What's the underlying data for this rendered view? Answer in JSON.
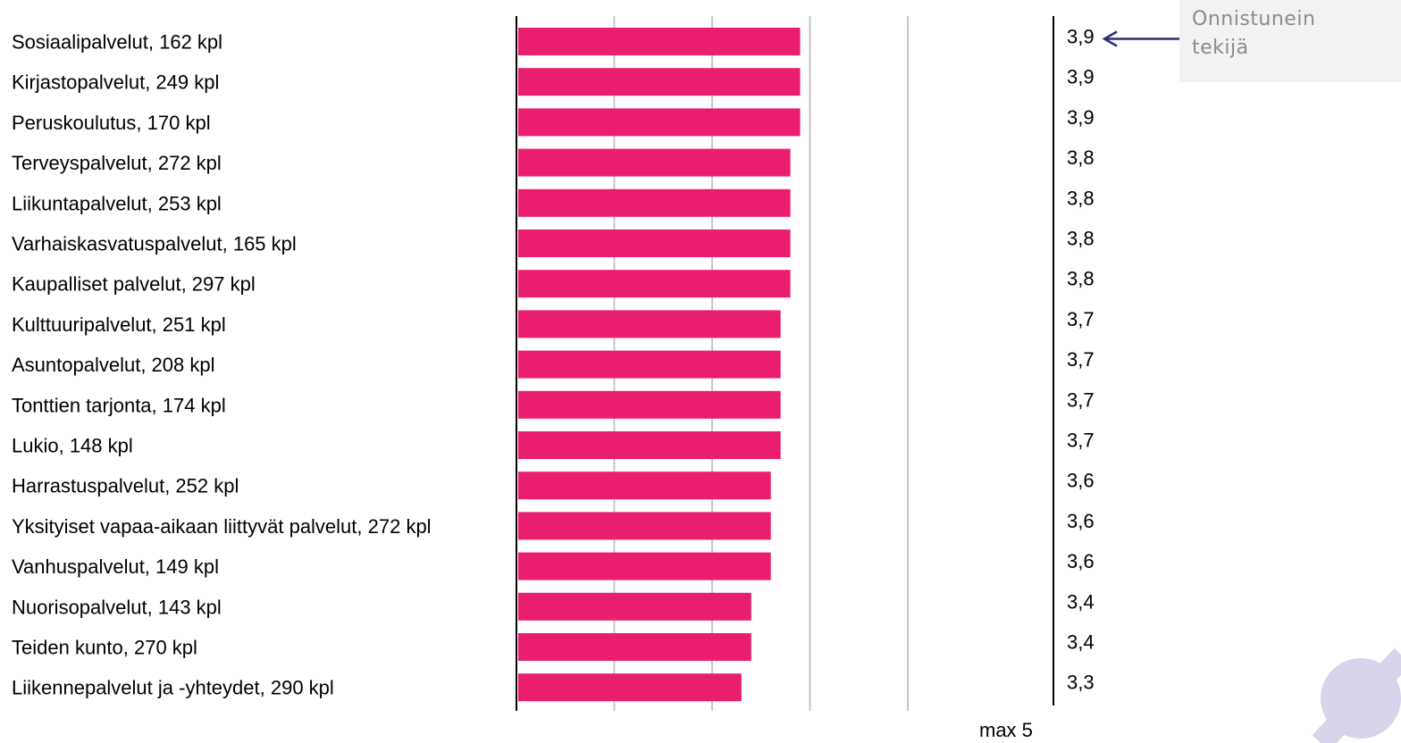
{
  "chart_data": {
    "type": "bar",
    "orientation": "horizontal",
    "categories": [
      "Sosiaalipalvelut, 162 kpl",
      "Kirjastopalvelut, 249 kpl",
      "Peruskoulutus, 170 kpl",
      "Terveyspalvelut, 272 kpl",
      "Liikuntapalvelut, 253 kpl",
      "Varhaiskasvatuspalvelut, 165 kpl",
      "Kaupalliset palvelut, 297 kpl",
      "Kulttuuripalvelut, 251 kpl",
      "Asuntopalvelut, 208 kpl",
      "Tonttien tarjonta, 174 kpl",
      "Lukio, 148 kpl",
      "Harrastuspalvelut, 252 kpl",
      "Yksityiset vapaa-aikaan liittyvät palvelut, 272 kpl",
      "Vanhuspalvelut, 149 kpl",
      "Nuorisopalvelut, 143 kpl",
      "Teiden kunto, 270 kpl",
      "Liikennepalvelut ja -yhteydet, 290 kpl"
    ],
    "values": [
      3.9,
      3.9,
      3.9,
      3.8,
      3.8,
      3.8,
      3.8,
      3.7,
      3.7,
      3.7,
      3.7,
      3.6,
      3.6,
      3.6,
      3.4,
      3.4,
      3.3
    ],
    "value_labels": [
      "3,9",
      "3,9",
      "3,9",
      "3,8",
      "3,8",
      "3,8",
      "3,8",
      "3,7",
      "3,7",
      "3,7",
      "3,7",
      "3,6",
      "3,6",
      "3,6",
      "3,4",
      "3,4",
      "3,3"
    ],
    "xlim": [
      1,
      5
    ],
    "max_label": "max  5",
    "grid": true,
    "bar_color": "#e91e6f",
    "grid_color": "#c8c8c8",
    "arrow_color": "#2b2b7a"
  },
  "callout": {
    "line1": "Onnistunein",
    "line2": "tekijä"
  },
  "colors": {
    "callout_bg": "#f2f2f2",
    "callout_text": "#8c8c8c",
    "decor_circle": "#d6d5ea"
  }
}
